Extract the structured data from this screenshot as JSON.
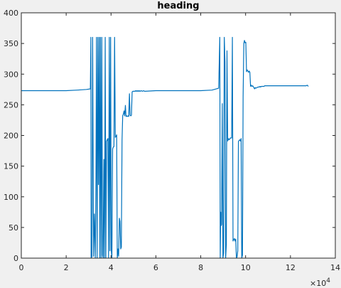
{
  "chart_data": {
    "type": "line",
    "title": "heading",
    "xlabel": "",
    "ylabel": "",
    "x_exponent_label": "×10",
    "x_exponent_power": "4",
    "xlim": [
      0,
      140000
    ],
    "ylim": [
      0,
      400
    ],
    "x_ticks": [
      0,
      20000,
      40000,
      60000,
      80000,
      100000,
      120000,
      140000
    ],
    "x_tick_labels": [
      "0",
      "2",
      "4",
      "6",
      "8",
      "10",
      "12",
      "14"
    ],
    "y_ticks": [
      0,
      50,
      100,
      150,
      200,
      250,
      300,
      350,
      400
    ],
    "y_tick_labels": [
      "0",
      "50",
      "100",
      "150",
      "200",
      "250",
      "300",
      "350",
      "400"
    ],
    "grid": false,
    "series_color": "#0072BD",
    "axes_background": "#ffffff",
    "axes_color": "#262626",
    "x": [
      0,
      5000,
      10000,
      15000,
      20000,
      25000,
      29000,
      30800,
      31000,
      31100,
      31200,
      31300,
      31500,
      31800,
      32200,
      32600,
      33000,
      33300,
      33500,
      33800,
      34100,
      34400,
      34700,
      35000,
      35300,
      35600,
      35900,
      36200,
      36500,
      36800,
      37100,
      37400,
      37700,
      38000,
      38300,
      38600,
      38900,
      39200,
      39500,
      39800,
      40100,
      40400,
      40700,
      41000,
      41300,
      41600,
      41900,
      42200,
      42500,
      42800,
      43100,
      43400,
      43700,
      44000,
      44300,
      44600,
      44900,
      45200,
      45500,
      45800,
      46100,
      46400,
      46700,
      47000,
      47300,
      47600,
      47900,
      48200,
      48500,
      48800,
      49100,
      49400,
      49700,
      50000,
      50300,
      50600,
      50900,
      51200,
      51500,
      51800,
      52100,
      52400,
      52700,
      53000,
      53500,
      54000,
      54500,
      55000,
      60000,
      65000,
      70000,
      75000,
      80000,
      85000,
      88000,
      88500,
      88700,
      88900,
      89100,
      89300,
      89600,
      89900,
      90200,
      90500,
      90800,
      91100,
      91400,
      91700,
      92000,
      92300,
      92600,
      92900,
      93200,
      93500,
      93800,
      94100,
      94400,
      94700,
      95000,
      95300,
      95600,
      95900,
      96200,
      96500,
      96800,
      97100,
      97400,
      97700,
      98000,
      98300,
      98600,
      98900,
      99200,
      99500,
      99800,
      100100,
      100400,
      100700,
      101000,
      101300,
      101600,
      101900,
      102200,
      102500,
      102800,
      103100,
      103400,
      103700,
      104000,
      104300,
      104600,
      104900,
      105200,
      105500,
      105800,
      106100,
      106400,
      106700,
      107000,
      107300,
      107600,
      107900,
      108200,
      108500,
      109000,
      110000,
      112000,
      114000,
      116000,
      118000,
      120000,
      122000,
      124000,
      126000,
      127000,
      127500,
      128000
    ],
    "values": [
      273,
      273,
      273,
      273,
      273,
      274,
      275,
      276,
      360,
      2,
      0,
      3,
      2,
      360,
      3,
      72,
      0,
      135,
      360,
      0,
      360,
      120,
      360,
      0,
      360,
      0,
      360,
      5,
      0,
      161,
      0,
      360,
      0,
      190,
      193,
      195,
      0,
      360,
      12,
      360,
      13,
      0,
      178,
      181,
      182,
      360,
      197,
      198,
      201,
      0,
      15,
      3,
      65,
      60,
      15,
      18,
      193,
      232,
      235,
      240,
      232,
      249,
      231,
      232,
      231,
      232,
      231,
      268,
      233,
      232,
      233,
      271,
      272,
      272,
      272,
      272,
      273,
      272,
      273,
      272,
      273,
      272,
      273,
      272,
      273,
      272,
      273,
      272,
      273,
      273,
      273,
      273,
      273,
      274,
      277,
      360,
      0,
      75,
      53,
      55,
      252,
      0,
      8,
      360,
      320,
      0,
      22,
      338,
      191,
      195,
      193,
      194,
      196,
      196,
      196,
      360,
      28,
      30,
      32,
      28,
      31,
      0,
      2,
      12,
      190,
      192,
      193,
      191,
      195,
      0,
      5,
      263,
      350,
      355,
      351,
      352,
      304,
      307,
      305,
      303,
      305,
      303,
      280,
      282,
      280,
      281,
      280,
      278,
      276,
      278,
      277,
      278,
      278,
      279,
      279,
      279,
      280,
      279,
      280,
      280,
      280,
      280,
      280,
      281,
      281,
      281,
      281,
      281,
      281,
      281,
      281,
      281,
      281,
      281,
      281,
      282,
      280
    ]
  }
}
